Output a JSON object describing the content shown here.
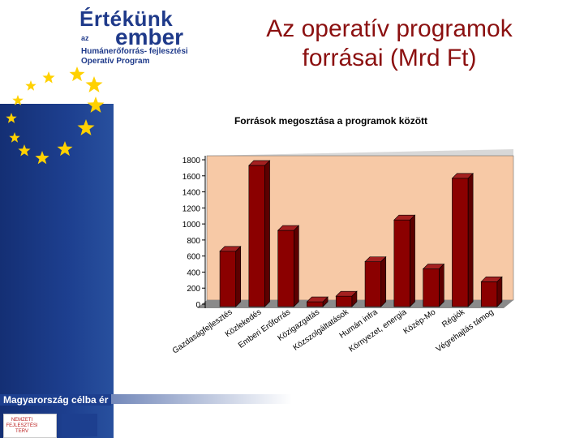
{
  "slide": {
    "title_lines": [
      "Az operatív programok",
      "forrásai (Mrd Ft)"
    ],
    "logo": {
      "top": "Értékünk",
      "az": "az",
      "bottom": "ember",
      "line1": "Humánerőforrás- fejlesztési",
      "line2": "Operatív Program"
    },
    "footer_text": "Magyarország célba ér",
    "badge_text": "NEMZETI FEJLESZTÉSI TERV"
  },
  "colors": {
    "title": "#8b1010",
    "plot_bg": "#f7c9a6",
    "bar_front": "#8b0000",
    "bar_top": "#a52020",
    "bar_side": "#5c0000",
    "star": "#ffd100",
    "sidebar": "#1d3f8f"
  },
  "chart_data": {
    "type": "bar",
    "title": "Források megosztása a programok között",
    "categories": [
      "Gazdaságfejlesztés",
      "Közlekedés",
      "Emberi Erőforrás",
      "Közigazgatás",
      "Közszolgáltatások",
      "Humán infra",
      "Környezet, energia",
      "Közép-Mo",
      "Régiók",
      "Végrehajtás támog"
    ],
    "values": [
      690,
      1760,
      950,
      60,
      130,
      560,
      1080,
      470,
      1600,
      310
    ],
    "ylim": [
      0,
      1800
    ],
    "yticks": [
      0,
      200,
      400,
      600,
      800,
      1000,
      1200,
      1400,
      1600,
      1800
    ],
    "xlabel": "",
    "ylabel": "",
    "grid": false,
    "legend": "none"
  }
}
